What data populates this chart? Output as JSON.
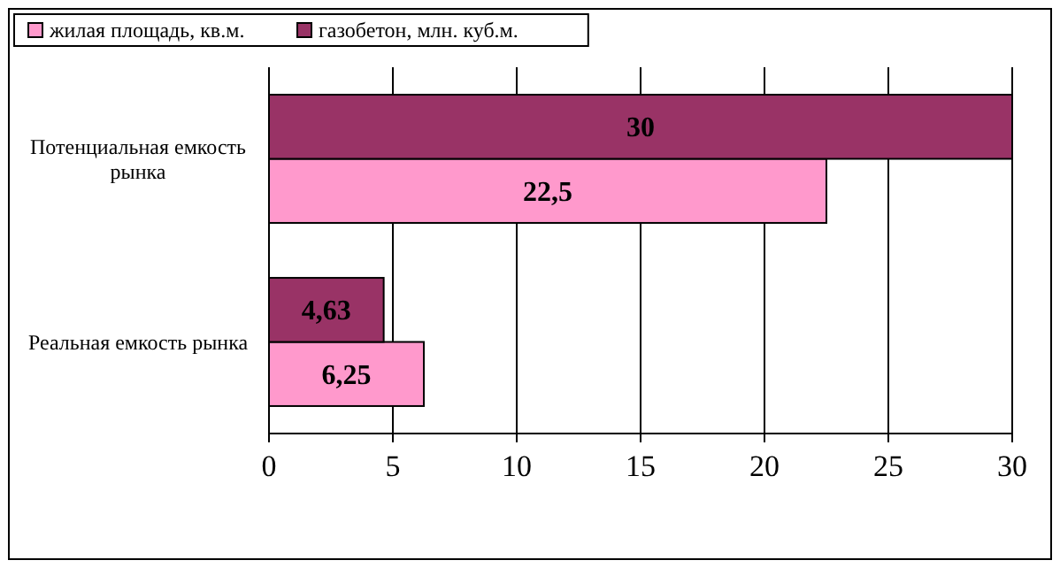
{
  "chart_data": {
    "type": "bar",
    "orientation": "horizontal",
    "categories": [
      "Потенциальная емкость рынка",
      "Реальная емкость рынка"
    ],
    "series": [
      {
        "name": "жилая площадь, кв.м.",
        "color": "#ff99cc",
        "values": [
          22.5,
          6.25
        ],
        "value_labels": [
          "22,5",
          "6,25"
        ]
      },
      {
        "name": "газобетон, млн. куб.м.",
        "color": "#993366",
        "values": [
          30,
          4.63
        ],
        "value_labels": [
          "30",
          "4,63"
        ]
      }
    ],
    "xlim": [
      0,
      30
    ],
    "xticks": [
      0,
      5,
      10,
      15,
      20,
      25,
      30
    ],
    "grid": "x",
    "legend": "top left"
  }
}
